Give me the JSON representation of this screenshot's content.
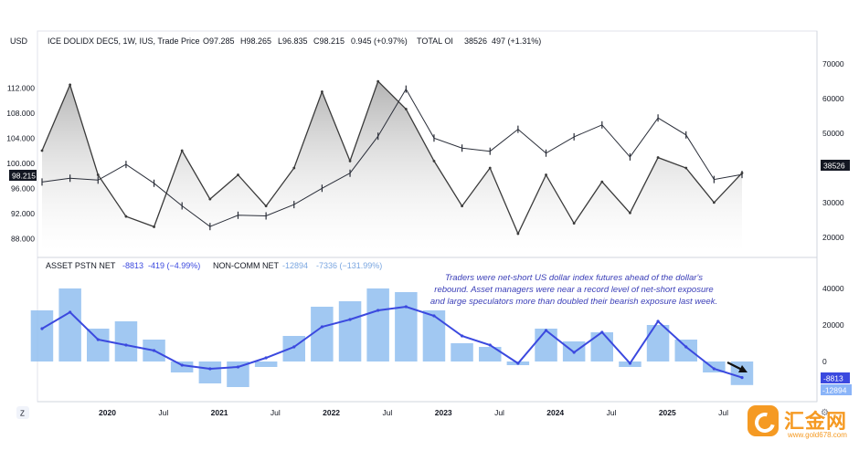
{
  "header": {
    "currency": "USD",
    "symbol": "ICE DOLIDX DEC5, 1W, IUS, Trade Price",
    "open": "O97.285",
    "high": "H98.265",
    "low": "L96.835",
    "close": "C98.215",
    "change": "0.945 (+0.97%)",
    "oi_label": "TOTAL OI",
    "oi_value": "38526",
    "oi_change": "497 (+1.31%)"
  },
  "lower_legend": {
    "asset_label": "ASSET PSTN NET",
    "asset_value": "-8813",
    "asset_change": "-419 (−4.99%)",
    "noncomm_label": "NON-COMM NET",
    "noncomm_value": "-12894",
    "noncomm_change": "-7336 (−131.99%)"
  },
  "annotation": {
    "line1": "Traders were net-short US dollar index futures ahead of the dollar's",
    "line2": "rebound. Asset managers were near a record level of net-short exposure",
    "line3": "and large speculators more than doubled their bearish exposure last week."
  },
  "badges": {
    "price_tag": "98.215",
    "oi_tag": "38526",
    "asset_tag": "-8813",
    "noncomm_tag": "-12894"
  },
  "misc": {
    "timezone_button": "Z",
    "settings_button": "⚙",
    "clipped_year": "6"
  },
  "watermark": {
    "text": "汇金网",
    "url": "www.gold678.com"
  },
  "colors": {
    "price_bars": "#2a2e39",
    "open_interest_line": "#3a3a3a",
    "asset_net_line": "#3b49df",
    "noncomm_net_bars": "#90bef0",
    "last_price_tag": "#131722",
    "asset_tag": "#3b49df",
    "noncomm_tag": "#8ab4f8",
    "annotation_text": "#3b3fb8"
  },
  "chart_data": [
    {
      "type": "line",
      "title": "ICE DOLIDX DEC5, 1W, IUS",
      "ylabel": "USD",
      "x": [
        "2019-06",
        "2019-09",
        "2019-12",
        "2020-03",
        "2020-06",
        "2020-09",
        "2020-12",
        "2021-03",
        "2021-06",
        "2021-09",
        "2021-12",
        "2022-03",
        "2022-06",
        "2022-09",
        "2022-12",
        "2023-03",
        "2023-06",
        "2023-09",
        "2023-12",
        "2024-03",
        "2024-06",
        "2024-09",
        "2024-12",
        "2025-03",
        "2025-06",
        "2025-09"
      ],
      "series": [
        {
          "name": "",
          "values": [
            97.0,
            97.6,
            97.3,
            99.8,
            96.8,
            93.2,
            89.9,
            91.7,
            91.6,
            93.4,
            96.0,
            98.4,
            104.3,
            111.8,
            104.0,
            102.4,
            101.9,
            105.4,
            101.6,
            104.2,
            106.1,
            101.0,
            107.2,
            104.5,
            97.4,
            98.2
          ]
        }
      ],
      "ylim": [
        86,
        118
      ],
      "yticks": [
        "112.000",
        "108.000",
        "104.000",
        "100.000",
        "98.215",
        "96.000",
        "92.000",
        "88.000"
      ]
    },
    {
      "type": "line",
      "title": "TOTAL OI",
      "x": [
        "2019-06",
        "2019-09",
        "2019-12",
        "2020-03",
        "2020-06",
        "2020-09",
        "2020-12",
        "2021-03",
        "2021-06",
        "2021-09",
        "2021-12",
        "2022-03",
        "2022-06",
        "2022-09",
        "2022-12",
        "2023-03",
        "2023-06",
        "2023-09",
        "2023-12",
        "2024-03",
        "2024-06",
        "2024-09",
        "2024-12",
        "2025-03",
        "2025-06",
        "2025-09"
      ],
      "series": [
        {
          "name": "",
          "values": [
            45000,
            64000,
            38000,
            26000,
            23000,
            45000,
            31000,
            38000,
            29000,
            40000,
            62000,
            42000,
            65000,
            57000,
            42000,
            29000,
            40000,
            21000,
            38000,
            24000,
            36000,
            27000,
            43000,
            40000,
            30000,
            38526
          ]
        }
      ],
      "ylim": [
        16000,
        74000
      ],
      "yticks": [
        "70000",
        "60000",
        "50000",
        "40000",
        "30000",
        "20000"
      ]
    },
    {
      "type": "bar",
      "title": "NON-COMM NET",
      "x": [
        "2019-06",
        "2019-09",
        "2019-12",
        "2020-03",
        "2020-06",
        "2020-09",
        "2020-12",
        "2021-03",
        "2021-06",
        "2021-09",
        "2021-12",
        "2022-03",
        "2022-06",
        "2022-09",
        "2022-12",
        "2023-03",
        "2023-06",
        "2023-09",
        "2023-12",
        "2024-03",
        "2024-06",
        "2024-09",
        "2024-12",
        "2025-03",
        "2025-06",
        "2025-09"
      ],
      "series": [
        {
          "name": "NON-COMM NET",
          "values": [
            28000,
            40000,
            18000,
            22000,
            12000,
            -6000,
            -12000,
            -14000,
            -3000,
            14000,
            30000,
            33000,
            40000,
            38000,
            28000,
            10000,
            8000,
            -2000,
            18000,
            11000,
            16000,
            -3000,
            20000,
            12000,
            -6000,
            -12894
          ]
        }
      ],
      "ylim": [
        -20000,
        48000
      ],
      "yticks": [
        "40000",
        "20000",
        "0"
      ]
    },
    {
      "type": "line",
      "title": "ASSET PSTN NET",
      "x": [
        "2019-06",
        "2019-09",
        "2019-12",
        "2020-03",
        "2020-06",
        "2020-09",
        "2020-12",
        "2021-03",
        "2021-06",
        "2021-09",
        "2021-12",
        "2022-03",
        "2022-06",
        "2022-09",
        "2022-12",
        "2023-03",
        "2023-06",
        "2023-09",
        "2023-12",
        "2024-03",
        "2024-06",
        "2024-09",
        "2024-12",
        "2025-03",
        "2025-06",
        "2025-09"
      ],
      "series": [
        {
          "name": "ASSET PSTN NET",
          "values": [
            18000,
            27000,
            12000,
            9000,
            6000,
            -2000,
            -4000,
            -3000,
            2000,
            8000,
            19000,
            23000,
            28000,
            30000,
            25000,
            14000,
            9000,
            -1000,
            17000,
            5000,
            16000,
            -1000,
            22000,
            8000,
            -4000,
            -8813
          ]
        }
      ],
      "ylim": [
        -20000,
        48000
      ]
    }
  ],
  "xaxis": {
    "labels": [
      "2020",
      "Jul",
      "2021",
      "Jul",
      "2022",
      "Jul",
      "2023",
      "Jul",
      "2024",
      "Jul",
      "2025",
      "Jul"
    ],
    "bold": [
      true,
      false,
      true,
      false,
      true,
      false,
      true,
      false,
      true,
      false,
      true,
      false
    ]
  }
}
